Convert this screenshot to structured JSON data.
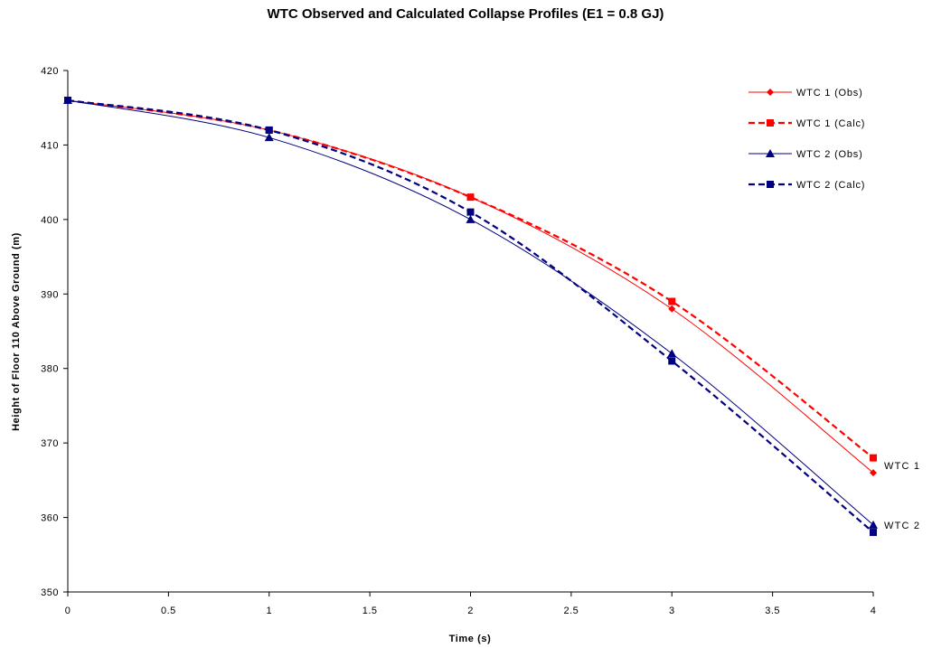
{
  "chart_data": {
    "type": "line",
    "title": "WTC Observed and Calculated Collapse Profiles (E1 = 0.8 GJ)",
    "xlabel": "Time (s)",
    "ylabel": "Height of Floor 110 Above Ground (m)",
    "xlim": [
      0,
      4
    ],
    "ylim": [
      350,
      420
    ],
    "x_ticks": [
      "0",
      "0.5",
      "1",
      "1.5",
      "2",
      "2.5",
      "3",
      "3.5",
      "4"
    ],
    "y_ticks": [
      "350",
      "360",
      "370",
      "380",
      "390",
      "400",
      "410",
      "420"
    ],
    "grid": false,
    "legend_position": "top-right",
    "series": [
      {
        "name": "WTC 1 (Obs)",
        "color": "#ff0000",
        "dash": "solid",
        "marker": "diamond",
        "x": [
          0,
          1,
          2,
          3,
          4
        ],
        "y": [
          416,
          412,
          403,
          388,
          366
        ]
      },
      {
        "name": "WTC 1 (Calc)",
        "color": "#ff0000",
        "dash": "dashed",
        "marker": "square",
        "x": [
          0,
          1,
          2,
          3,
          4
        ],
        "y": [
          416,
          412,
          403,
          389,
          368
        ]
      },
      {
        "name": "WTC 2 (Obs)",
        "color": "#000080",
        "dash": "solid",
        "marker": "triangle",
        "x": [
          0,
          1,
          2,
          3,
          4
        ],
        "y": [
          416,
          411,
          400,
          382,
          359
        ]
      },
      {
        "name": "WTC 2 (Calc)",
        "color": "#000080",
        "dash": "dashed",
        "marker": "square",
        "x": [
          0,
          1,
          2,
          3,
          4
        ],
        "y": [
          416,
          412,
          401,
          381,
          358
        ]
      }
    ],
    "annotations": [
      {
        "text": "WTC 1",
        "x": 4,
        "y": 367
      },
      {
        "text": "WTC 2",
        "x": 4,
        "y": 359
      }
    ]
  }
}
